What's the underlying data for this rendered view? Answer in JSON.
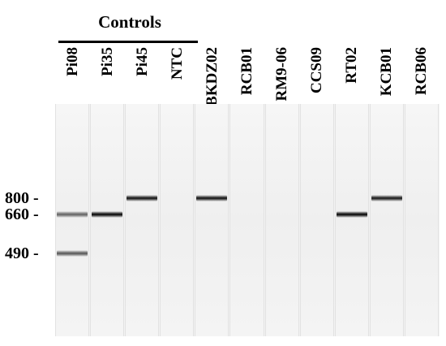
{
  "group_label": "Controls",
  "lanes": [
    {
      "label": "Pi08",
      "bands": [
        {
          "size": 660,
          "intensity": 0.6
        },
        {
          "size": 490,
          "intensity": 0.65
        }
      ]
    },
    {
      "label": "Pi35",
      "bands": [
        {
          "size": 660,
          "intensity": 1.0
        }
      ]
    },
    {
      "label": "Pi45",
      "bands": [
        {
          "size": 800,
          "intensity": 0.95
        }
      ]
    },
    {
      "label": "NTC",
      "bands": []
    },
    {
      "label": "BKDZ02",
      "bands": [
        {
          "size": 800,
          "intensity": 0.95
        }
      ]
    },
    {
      "label": "RCB01",
      "bands": []
    },
    {
      "label": "RM9-06",
      "bands": []
    },
    {
      "label": "CCS09",
      "bands": []
    },
    {
      "label": "RT02",
      "bands": [
        {
          "size": 660,
          "intensity": 1.0
        }
      ]
    },
    {
      "label": "KCB01",
      "bands": [
        {
          "size": 800,
          "intensity": 0.92
        }
      ]
    },
    {
      "label": "RCB06",
      "bands": []
    }
  ],
  "size_markers": [
    {
      "size": 800,
      "label": "800 -"
    },
    {
      "size": 660,
      "label": "660 -"
    },
    {
      "size": 490,
      "label": "490 -"
    }
  ]
}
